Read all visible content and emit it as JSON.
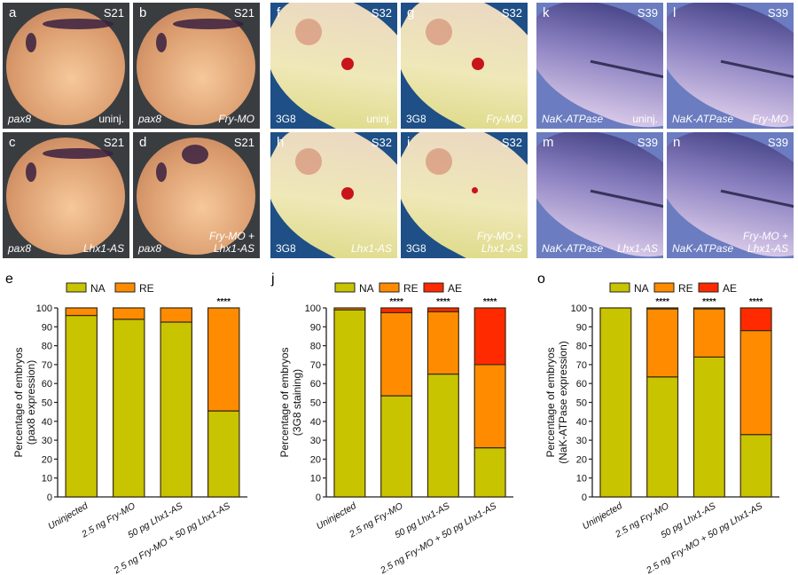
{
  "image_panels": {
    "row_pax8": [
      {
        "letter": "a",
        "stage": "S21",
        "marker": "pax8",
        "condition": [
          "uninj."
        ]
      },
      {
        "letter": "b",
        "stage": "S21",
        "marker": "pax8",
        "condition": [
          "Fry-MO"
        ]
      },
      {
        "letter": "c",
        "stage": "S21",
        "marker": "pax8",
        "condition": [
          "Lhx1-AS"
        ]
      },
      {
        "letter": "d",
        "stage": "S21",
        "marker": "pax8",
        "condition": [
          "Fry-MO +",
          "Lhx1-AS"
        ]
      }
    ],
    "row_3g8": [
      {
        "letter": "f",
        "stage": "S32",
        "marker": "3G8",
        "condition": [
          "uninj."
        ]
      },
      {
        "letter": "g",
        "stage": "S32",
        "marker": "3G8",
        "condition": [
          "Fry-MO"
        ]
      },
      {
        "letter": "h",
        "stage": "S32",
        "marker": "3G8",
        "condition": [
          "Lhx1-AS"
        ]
      },
      {
        "letter": "i",
        "stage": "S32",
        "marker": "3G8",
        "condition": [
          "Fry-MO +",
          "Lhx1-AS"
        ]
      }
    ],
    "row_nak": [
      {
        "letter": "k",
        "stage": "S39",
        "marker": "NaK-ATPase",
        "condition": [
          "uninj."
        ]
      },
      {
        "letter": "l",
        "stage": "S39",
        "marker": "NaK-ATPase",
        "condition": [
          "Fry-MO"
        ]
      },
      {
        "letter": "m",
        "stage": "S39",
        "marker": "NaK-ATPase",
        "condition": [
          "Lhx1-AS"
        ]
      },
      {
        "letter": "n",
        "stage": "S39",
        "marker": "NaK-ATPase",
        "condition": [
          "Fry-MO +",
          "Lhx1-AS"
        ]
      }
    ]
  },
  "colors": {
    "NA": "#c8c400",
    "RE": "#ff8c00",
    "AE": "#ff2a00",
    "outline": "#3a2a10"
  },
  "chart_data": [
    {
      "letter": "e",
      "type": "bar",
      "stacked": true,
      "categories": [
        "Uninjected",
        "2.5 ng Fry-MO",
        "50 pg Lhx1-AS",
        "2.5 ng Fry-MO + 50 pg Lhx1-AS"
      ],
      "series": [
        {
          "name": "NA",
          "values": [
            96,
            94,
            92.5,
            45.5
          ]
        },
        {
          "name": "RE",
          "values": [
            4,
            6,
            7.5,
            54.5
          ]
        }
      ],
      "significance": [
        "",
        "",
        "",
        "****"
      ],
      "ylabel": [
        "Percentage of embryos",
        "(pax8 expression)"
      ],
      "ylim": [
        0,
        100
      ],
      "yticks": [
        0,
        10,
        20,
        30,
        40,
        50,
        60,
        70,
        80,
        90,
        100
      ],
      "legend": [
        "NA",
        "RE"
      ],
      "legend_position": "top"
    },
    {
      "letter": "j",
      "type": "bar",
      "stacked": true,
      "categories": [
        "Uninjected",
        "2.5 ng Fry-MO",
        "50 pg Lhx1-AS",
        "2.5 ng Fry-MO + 50 pg Lhx1-AS"
      ],
      "series": [
        {
          "name": "NA",
          "values": [
            99,
            53.5,
            65,
            26
          ]
        },
        {
          "name": "RE",
          "values": [
            1,
            44,
            33,
            44
          ]
        },
        {
          "name": "AE",
          "values": [
            0,
            2.5,
            2,
            30
          ]
        }
      ],
      "significance": [
        "",
        "****",
        "****",
        "****"
      ],
      "ylabel": [
        "Percentage of embryos",
        "(3G8 staining)"
      ],
      "ylim": [
        0,
        100
      ],
      "yticks": [
        0,
        10,
        20,
        30,
        40,
        50,
        60,
        70,
        80,
        90,
        100
      ],
      "legend": [
        "NA",
        "RE",
        "AE"
      ],
      "legend_position": "top"
    },
    {
      "letter": "o",
      "type": "bar",
      "stacked": true,
      "categories": [
        "Uninjected",
        "2.5 ng Fry-MO",
        "50 pg Lhx1-AS",
        "2.5 ng Fry-MO + 50 pg Lhx1-AS"
      ],
      "series": [
        {
          "name": "NA",
          "values": [
            100,
            63.5,
            74,
            33
          ]
        },
        {
          "name": "RE",
          "values": [
            0,
            36,
            25.5,
            55
          ]
        },
        {
          "name": "AE",
          "values": [
            0,
            0.5,
            0.5,
            12
          ]
        }
      ],
      "significance": [
        "",
        "****",
        "****",
        "****"
      ],
      "ylabel": [
        "Percentage of embryos",
        "(NaK-ATPase expression)"
      ],
      "ylim": [
        0,
        100
      ],
      "yticks": [
        0,
        10,
        20,
        30,
        40,
        50,
        60,
        70,
        80,
        90,
        100
      ],
      "legend": [
        "NA",
        "RE",
        "AE"
      ],
      "legend_position": "top"
    }
  ]
}
